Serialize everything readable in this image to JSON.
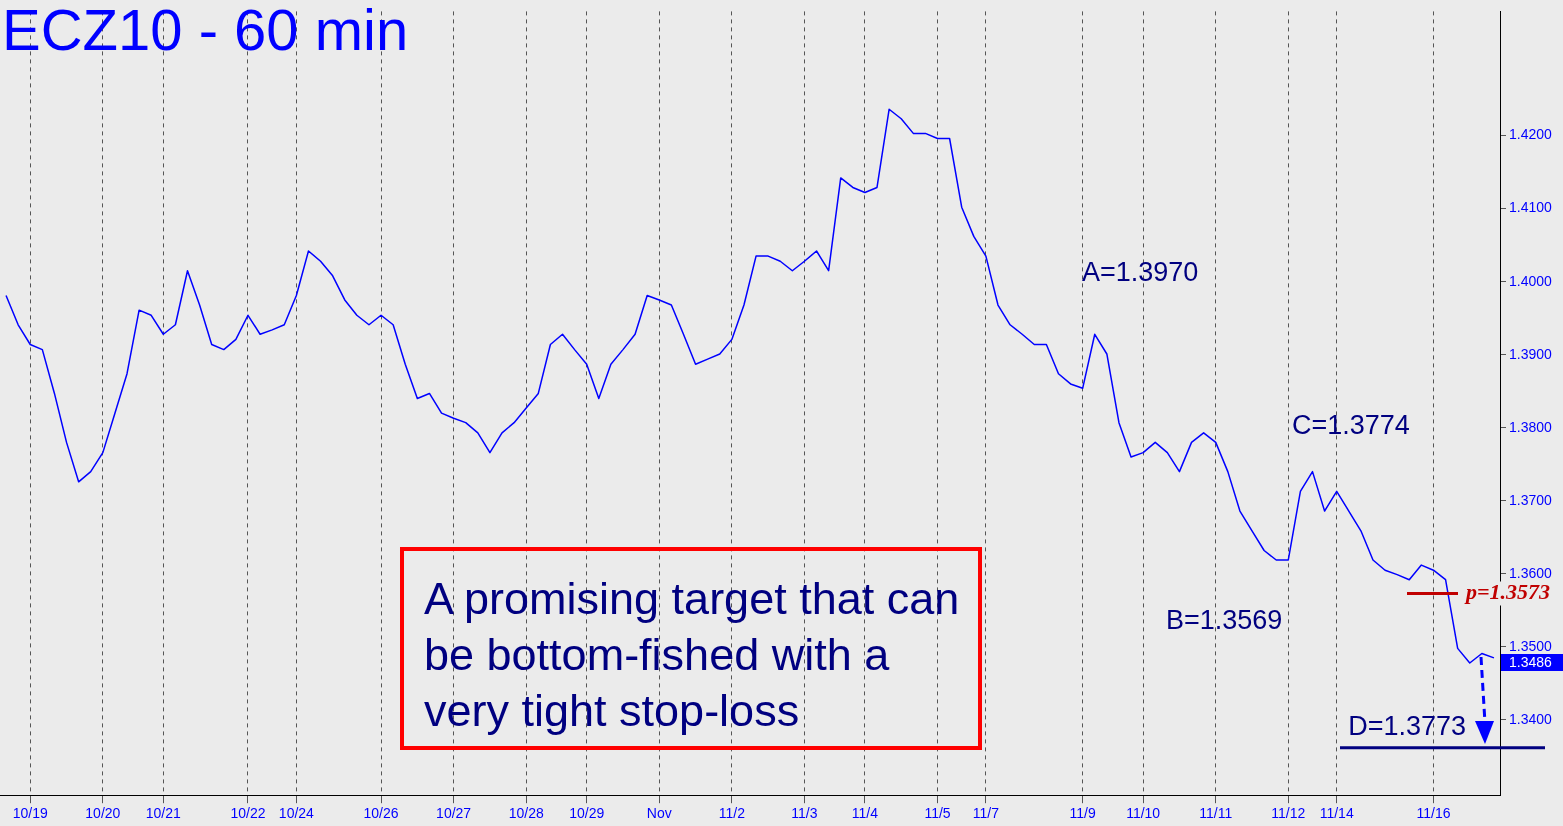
{
  "chart_data": {
    "type": "line",
    "title": "ECZ10 - 60 min",
    "categories": [
      null,
      null,
      "10/19",
      null,
      null,
      null,
      null,
      null,
      "10/20",
      null,
      null,
      null,
      null,
      "10/21",
      null,
      null,
      null,
      null,
      null,
      null,
      "10/22",
      null,
      null,
      null,
      "10/24",
      null,
      null,
      null,
      null,
      null,
      null,
      "10/26",
      null,
      null,
      null,
      null,
      null,
      "10/27",
      null,
      null,
      null,
      null,
      null,
      "10/28",
      null,
      null,
      null,
      null,
      "10/29",
      null,
      null,
      null,
      null,
      null,
      "Nov",
      null,
      null,
      null,
      null,
      null,
      "11/2",
      null,
      null,
      null,
      null,
      null,
      "11/3",
      null,
      null,
      null,
      null,
      "11/4",
      null,
      null,
      null,
      null,
      null,
      "11/5",
      null,
      null,
      null,
      "11/7",
      null,
      null,
      null,
      null,
      null,
      null,
      null,
      "11/9",
      null,
      null,
      null,
      null,
      "11/10",
      null,
      null,
      null,
      null,
      null,
      "11/11",
      null,
      null,
      null,
      null,
      null,
      "11/12",
      null,
      null,
      null,
      "11/14",
      null,
      null,
      null,
      null,
      null,
      null,
      null,
      "11/16",
      null,
      null,
      null,
      null,
      null
    ],
    "series": [
      {
        "color": "#0000ff",
        "values": [
          1.3981,
          1.3941,
          1.3914,
          1.3907,
          1.3847,
          1.378,
          1.3726,
          1.374,
          1.3766,
          1.382,
          1.3874,
          1.3961,
          1.3954,
          1.3928,
          1.3941,
          1.4015,
          1.3968,
          1.3914,
          1.3907,
          1.3921,
          1.3954,
          1.3928,
          1.3934,
          1.3941,
          1.3981,
          1.4042,
          1.4028,
          1.4008,
          1.3975,
          1.3954,
          1.3941,
          1.3954,
          1.3941,
          1.3887,
          1.384,
          1.3847,
          1.382,
          1.3813,
          1.3807,
          1.3793,
          1.3766,
          1.3793,
          1.3807,
          1.3827,
          1.3847,
          1.3914,
          1.3928,
          1.3907,
          1.3887,
          1.384,
          1.3887,
          1.3907,
          1.3928,
          1.3981,
          1.3975,
          1.3968,
          1.3928,
          1.3887,
          1.3894,
          1.3901,
          1.3921,
          1.3968,
          1.4035,
          1.4035,
          1.4028,
          1.4015,
          1.4028,
          1.4042,
          1.4015,
          1.4142,
          1.4129,
          1.4122,
          1.4129,
          1.4236,
          1.4223,
          1.4203,
          1.4203,
          1.4196,
          1.4196,
          1.4102,
          1.4062,
          1.4035,
          1.3968,
          1.3941,
          1.3928,
          1.3914,
          1.3914,
          1.3874,
          1.386,
          1.3854,
          1.3928,
          1.3901,
          1.3807,
          1.376,
          1.3766,
          1.378,
          1.3766,
          1.374,
          1.378,
          1.3793,
          1.378,
          1.374,
          1.3686,
          1.3659,
          1.3632,
          1.3619,
          1.3619,
          1.3713,
          1.374,
          1.3686,
          1.3713,
          1.3686,
          1.3659,
          1.3619,
          1.3605,
          1.3599,
          1.3592,
          1.3612,
          1.3605,
          1.3592,
          1.3498,
          1.3478,
          1.3491,
          1.3485
        ]
      }
    ],
    "ylim": [
      1.3297,
      1.437
    ],
    "yticks": [
      {
        "value": 1.34,
        "label": "1.3400"
      },
      {
        "value": 1.35,
        "label": "1.3500"
      },
      {
        "value": 1.36,
        "label": "1.3600"
      },
      {
        "value": 1.37,
        "label": "1.3700"
      },
      {
        "value": 1.38,
        "label": "1.3800"
      },
      {
        "value": 1.39,
        "label": "1.3900"
      },
      {
        "value": 1.4,
        "label": "1.4000"
      },
      {
        "value": 1.41,
        "label": "1.4100"
      },
      {
        "value": 1.42,
        "label": "1.4200"
      }
    ],
    "grid": "x",
    "legend": false,
    "marker": "none",
    "line_style": "solid",
    "ref_lines": [
      {
        "axis": "y",
        "value": 1.3573,
        "label": "p=1.3573",
        "color": "#c00000"
      },
      {
        "axis": "y",
        "value": 1.3362,
        "color": "#000080"
      }
    ],
    "annotations": [
      "A=1.3970",
      "B=1.3569",
      "C=1.3774",
      "1.3486",
      {
        "text": "D=1.3773",
        "y": 1.3362
      },
      "A promising target that can be bottom-fished with a very tight stop-loss"
    ]
  }
}
